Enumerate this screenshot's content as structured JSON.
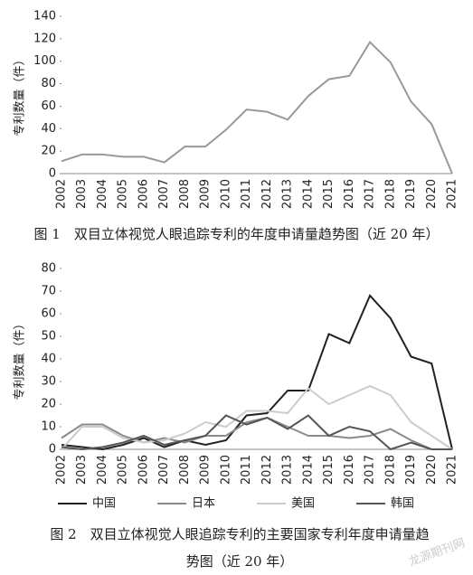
{
  "chart_data": [
    {
      "type": "line",
      "title": "图 1　双目立体视觉人眼追踪专利的年度申请量趋势图（近 20 年）",
      "y_label": "专利数量（件）",
      "categories": [
        "2002",
        "2003",
        "2004",
        "2005",
        "2006",
        "2007",
        "2008",
        "2009",
        "2010",
        "2011",
        "2012",
        "2013",
        "2014",
        "2015",
        "2016",
        "2017",
        "2018",
        "2019",
        "2020",
        "2021"
      ],
      "values": [
        11,
        17,
        17,
        15,
        15,
        10,
        24,
        24,
        39,
        57,
        55,
        48,
        69,
        84,
        87,
        117,
        99,
        64,
        44,
        0
      ],
      "color": "#999999",
      "ylim": [
        0,
        140
      ],
      "yticks": [
        0,
        20,
        40,
        60,
        80,
        100,
        120,
        140
      ],
      "grid": false
    },
    {
      "type": "line",
      "title": "图 2　双目立体视觉人眼追踪专利的主要国家专利年度申请量趋势图（近 20 年）",
      "y_label": "专利数量（件）",
      "categories": [
        "2002",
        "2003",
        "2004",
        "2005",
        "2006",
        "2007",
        "2008",
        "2009",
        "2010",
        "2011",
        "2012",
        "2013",
        "2014",
        "2015",
        "2016",
        "2017",
        "2018",
        "2019",
        "2020",
        "2021"
      ],
      "series": [
        {
          "name": "中国",
          "color": "#222222",
          "values": [
            2,
            1,
            0,
            2,
            5,
            1,
            4,
            2,
            4,
            15,
            16,
            26,
            26,
            51,
            47,
            68,
            58,
            41,
            38,
            0
          ]
        },
        {
          "name": "日本",
          "color": "#8a8a8a",
          "values": [
            5,
            11,
            11,
            6,
            3,
            5,
            3,
            6,
            6,
            12,
            14,
            10,
            6,
            6,
            5,
            6,
            9,
            4,
            0,
            0
          ]
        },
        {
          "name": "美国",
          "color": "#cccccc",
          "values": [
            0,
            10,
            10,
            5,
            3,
            4,
            7,
            12,
            10,
            17,
            17,
            16,
            27,
            20,
            24,
            28,
            24,
            12,
            6,
            0
          ]
        },
        {
          "name": "韩国",
          "color": "#555555",
          "values": [
            1,
            0,
            1,
            3,
            6,
            2,
            4,
            6,
            15,
            11,
            14,
            9,
            15,
            6,
            10,
            8,
            0,
            3,
            0,
            0
          ]
        }
      ],
      "ylim": [
        0,
        80
      ],
      "yticks": [
        0,
        10,
        20,
        30,
        40,
        50,
        60,
        70,
        80
      ],
      "grid": false,
      "legend": "bottom"
    }
  ],
  "watermark": "龙源期刊网"
}
